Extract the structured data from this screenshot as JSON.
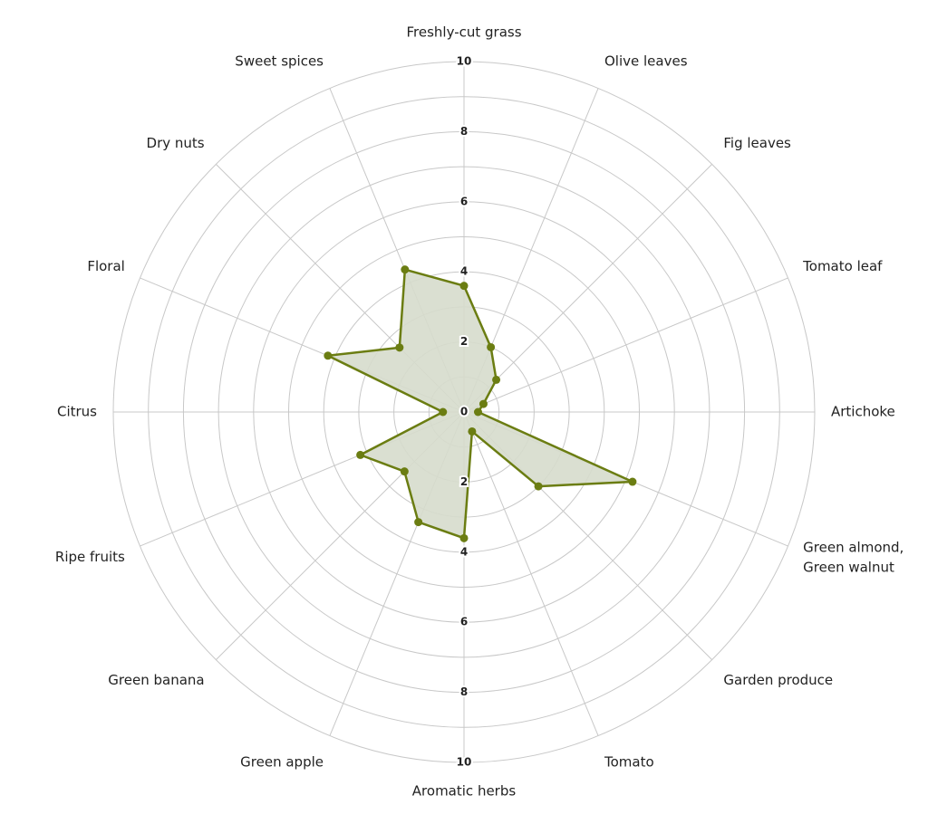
{
  "chart_data": {
    "type": "radar",
    "categories": [
      "Freshly-cut grass",
      "Olive leaves",
      "Fig leaves",
      "Tomato leaf",
      "Artichoke",
      "Green almond, Green walnut",
      "Garden produce",
      "Tomato",
      "Aromatic herbs",
      "Green apple",
      "Green banana",
      "Ripe fruits",
      "Citrus",
      "Floral",
      "Dry nuts",
      "Sweet spices"
    ],
    "values": [
      3.6,
      2.0,
      1.3,
      0.6,
      0.4,
      5.2,
      3.0,
      0.6,
      3.6,
      3.4,
      2.4,
      3.2,
      0.6,
      4.2,
      2.6,
      4.4
    ],
    "color": "#6b7d12",
    "fill": "#d6dccc",
    "rlim": [
      0,
      10
    ],
    "rticks": [
      0,
      2,
      4,
      6,
      8,
      10
    ],
    "rgrid": [
      1,
      2,
      3,
      4,
      5,
      6,
      7,
      8,
      9,
      10
    ],
    "grid": true
  }
}
